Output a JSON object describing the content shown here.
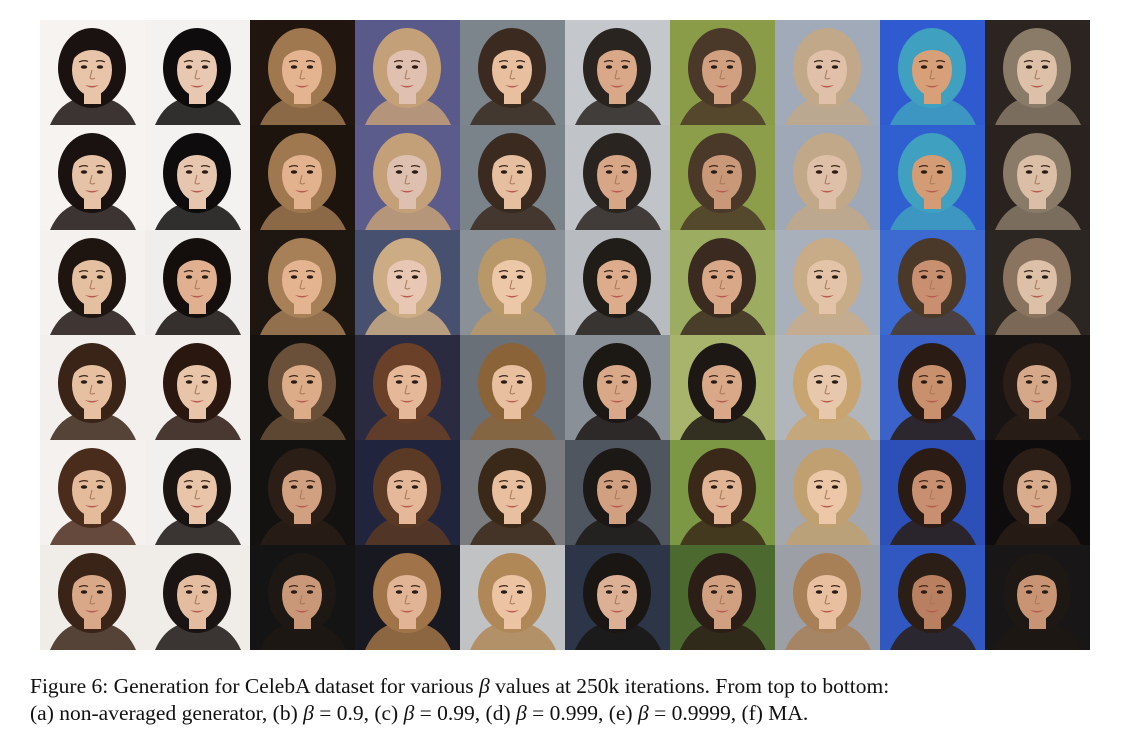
{
  "figure": {
    "rows": 6,
    "columns": 10,
    "row_settings": [
      "non-averaged",
      "β = 0.9",
      "β = 0.99",
      "β = 0.999",
      "β = 0.9999",
      "MA"
    ],
    "column_backgrounds": [
      "#f4f1ee",
      "#f2f0ee",
      "#1c1612",
      "#4a4a78",
      "#7a8088",
      "#b8bcc0",
      "#8a9a50",
      "#9aa4b0",
      "#3a5cc8",
      "#2a2420"
    ],
    "row_backgrounds": [
      [
        "#f6f3f0",
        "#f4f2f0",
        "#20160f",
        "#5a5a8a",
        "#7c848c",
        "#c4c8cc",
        "#8a9c48",
        "#a0aab8",
        "#2f5ad0",
        "#2c2420"
      ],
      [
        "#f6f3f0",
        "#f4f2f0",
        "#1e140e",
        "#5c5c8c",
        "#7a828a",
        "#c0c4c8",
        "#8c9e4a",
        "#9ea8b6",
        "#3060d0",
        "#2a221e"
      ],
      [
        "#f4f1ee",
        "#f0eeec",
        "#1e1610",
        "#485070",
        "#8a9098",
        "#b8bcc0",
        "#9cac60",
        "#a8b0bc",
        "#3c6ad0",
        "#2c2622"
      ],
      [
        "#f2efec",
        "#f2efec",
        "#161210",
        "#2a2a40",
        "#6a7078",
        "#8a9098",
        "#a8b46c",
        "#b0b6bc",
        "#3a62c8",
        "#181414"
      ],
      [
        "#f4f1ee",
        "#f2f0ee",
        "#141210",
        "#20243c",
        "#7a7c80",
        "#505660",
        "#7c9844",
        "#a4a8ae",
        "#2c50b8",
        "#0e0c0c"
      ],
      [
        "#f0ede9",
        "#f0ede9",
        "#141414",
        "#181820",
        "#c0c2c4",
        "#2c3648",
        "#4c6a30",
        "#9ca0a6",
        "#3058c0",
        "#181616"
      ]
    ],
    "skin_tones": [
      [
        "#e8c4a8",
        "#e8c8b0",
        "#e4b490",
        "#e0c0b0",
        "#e8c0a0",
        "#d8a888",
        "#d0a080",
        "#e0c0a8",
        "#d8a078",
        "#dcc0a8"
      ],
      [
        "#e6c2a6",
        "#e6c6ae",
        "#e2b28e",
        "#dec0b0",
        "#e6bea0",
        "#d6a686",
        "#c89878",
        "#dec0a8",
        "#d49c74",
        "#dabea6"
      ],
      [
        "#e4c0a0",
        "#e0b090",
        "#e4b490",
        "#e8c8b4",
        "#ecc8a8",
        "#dcac8c",
        "#d8a888",
        "#e4c4a8",
        "#c89070",
        "#dcc0a8"
      ],
      [
        "#e6c0a0",
        "#e8c4a8",
        "#dcac88",
        "#e4b898",
        "#e8c0a0",
        "#d8a888",
        "#d8a888",
        "#e8c8ac",
        "#c8906c",
        "#d4a888"
      ],
      [
        "#e4bc9c",
        "#e8c4a8",
        "#d0a080",
        "#e4b898",
        "#e8c0a0",
        "#d0a080",
        "#e0b494",
        "#ecc8a8",
        "#c89070",
        "#d8ac8c"
      ],
      [
        "#d8a888",
        "#e4bca0",
        "#c89878",
        "#e0b494",
        "#ecc4a4",
        "#dcb094",
        "#d0a080",
        "#e8c0a0",
        "#b88060",
        "#c89474"
      ]
    ],
    "hair_colors": [
      [
        "#1a1210",
        "#0e0c0c",
        "#a07850",
        "#c4a078",
        "#3a2a20",
        "#2a2420",
        "#4a3828",
        "#c0a888",
        "#40a0c0",
        "#8a7a68"
      ],
      [
        "#1a1210",
        "#0e0c0c",
        "#a07850",
        "#c4a078",
        "#3a2a20",
        "#2a2420",
        "#4a3828",
        "#c0a888",
        "#40a0c0",
        "#8a7a68"
      ],
      [
        "#1e1410",
        "#140e0c",
        "#a88058",
        "#ccac84",
        "#b89868",
        "#201c18",
        "#3a2a20",
        "#c8ac88",
        "#4a3828",
        "#8a7460"
      ],
      [
        "#3a2418",
        "#2a1810",
        "#6a5038",
        "#6a4028",
        "#8a6438",
        "#1c1814",
        "#1e1814",
        "#c8a470",
        "#2a1c14",
        "#2a1e16"
      ],
      [
        "#4a2c1c",
        "#1a1412",
        "#2a1e16",
        "#5a3a24",
        "#3a2818",
        "#1c1816",
        "#3a2818",
        "#c0a070",
        "#2a1c14",
        "#2a1e16"
      ],
      [
        "#3a2418",
        "#1a1412",
        "#1e1814",
        "#a07448",
        "#b08858",
        "#1a1614",
        "#2a1e16",
        "#a88058",
        "#2a1e16",
        "#1e1814"
      ]
    ]
  },
  "caption": {
    "line1_prefix": "Figure 6: Generation for CelebA dataset for various ",
    "line1_beta": "β",
    "line1_suffix": " values at 250k iterations. From top to bottom:",
    "line2_a": "(a) non-averaged generator, (b) ",
    "line2_b_beta": "β",
    "line2_b_val": " = 0.9, (c) ",
    "line2_c_beta": "β",
    "line2_c_val": " = 0.99, (d) ",
    "line2_d_beta": "β",
    "line2_d_val": " = 0.999, (e) ",
    "line2_e_beta": "β",
    "line2_e_val": " = 0.9999, (f) MA."
  }
}
